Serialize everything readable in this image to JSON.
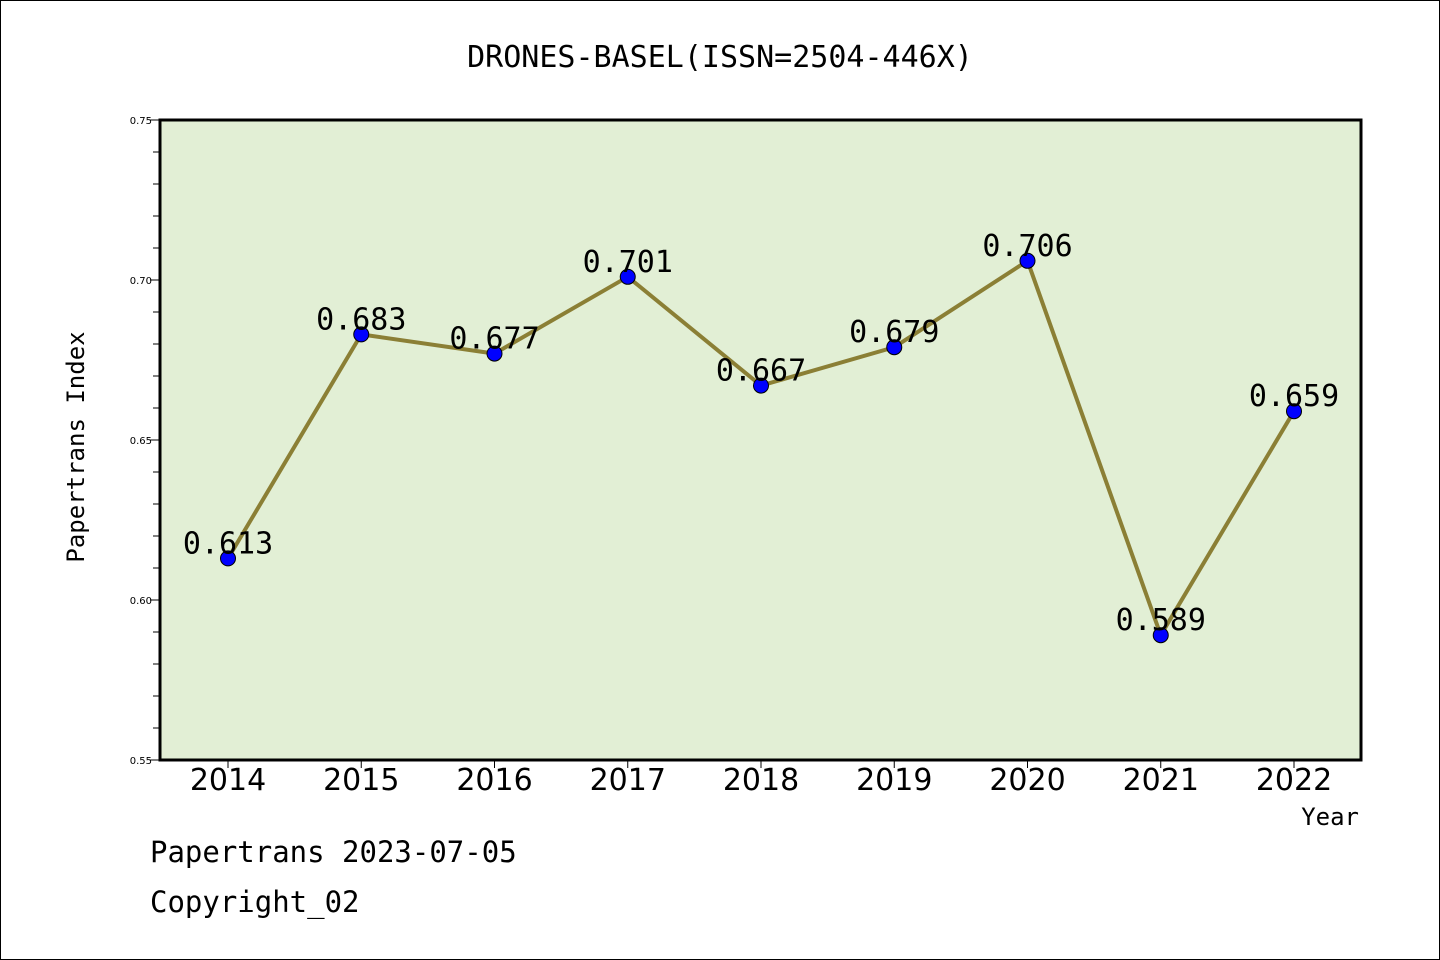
{
  "chart_data": {
    "type": "line",
    "title": "DRONES-BASEL(ISSN=2504-446X)",
    "xlabel": "Year",
    "ylabel": "Papertrans Index",
    "categories": [
      "2014",
      "2015",
      "2016",
      "2017",
      "2018",
      "2019",
      "2020",
      "2021",
      "2022"
    ],
    "values": [
      0.613,
      0.683,
      0.677,
      0.701,
      0.667,
      0.679,
      0.706,
      0.589,
      0.659
    ],
    "data_labels": [
      "0.613",
      "0.683",
      "0.677",
      "0.701",
      "0.667",
      "0.679",
      "0.706",
      "0.589",
      "0.659"
    ],
    "ylim": [
      0.55,
      0.75
    ],
    "yticks": [
      0.55,
      0.6,
      0.65,
      0.7,
      0.75
    ],
    "ytick_labels": [
      "0.55",
      "0.60",
      "0.65",
      "0.70",
      "0.75"
    ],
    "grid": false,
    "colors": {
      "plot_background": "#e2efd5",
      "line": "#8b7f35",
      "marker": "#0000ff",
      "axes": "#000000"
    }
  },
  "footer": {
    "line1": "Papertrans 2023-07-05",
    "line2": "Copyright_02"
  }
}
